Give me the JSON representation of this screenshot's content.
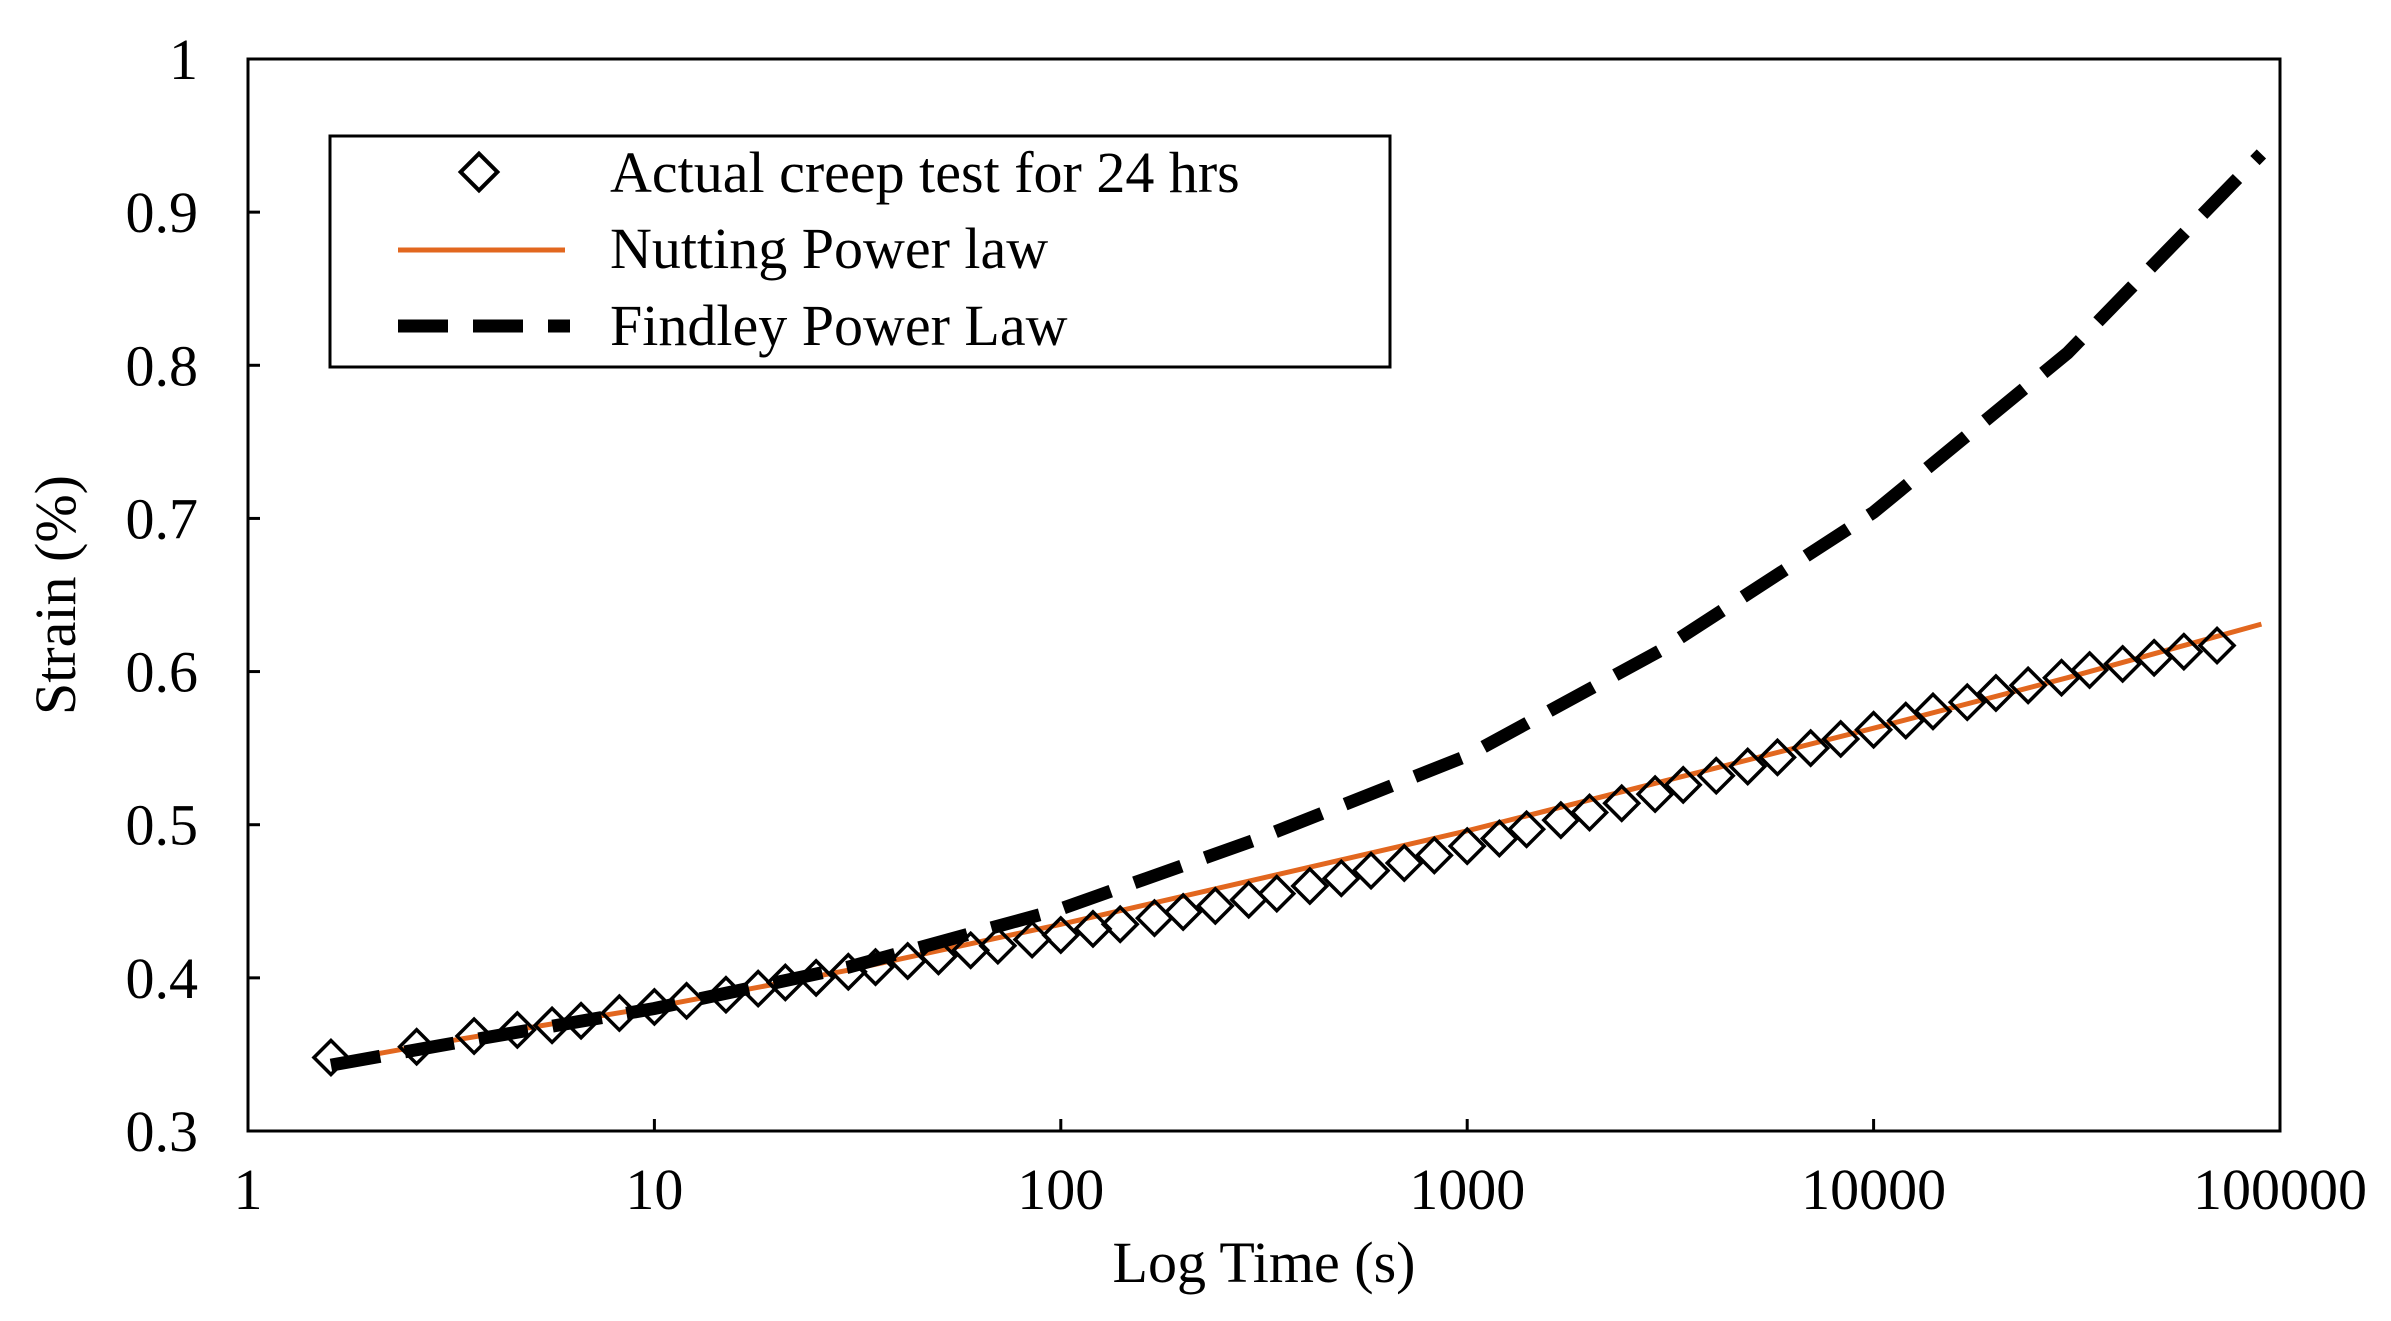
{
  "chart_data": {
    "type": "scatter",
    "title": "",
    "xlabel": "Log Time (s)",
    "ylabel": "Strain (%)",
    "xscale": "log",
    "xlim": [
      1,
      100000
    ],
    "ylim": [
      0.3,
      1.0
    ],
    "grid": false,
    "legend_position": "top-left",
    "x_ticks": [
      1,
      10,
      100,
      1000,
      10000,
      100000
    ],
    "x_tick_labels": [
      "1",
      "10",
      "100",
      "1000",
      "10000",
      "100000"
    ],
    "y_ticks": [
      0.3,
      0.4,
      0.5,
      0.6,
      0.7,
      0.8,
      0.9,
      1.0
    ],
    "y_tick_labels": [
      "0.3",
      "0.4",
      "0.5",
      "0.6",
      "0.7",
      "0.8",
      "0.9",
      "1"
    ],
    "series": [
      {
        "name": "Actual creep test for 24 hrs",
        "style": "markers",
        "marker": "diamond-open",
        "color": "#000000",
        "x": [
          1.6,
          2.6,
          3.6,
          4.6,
          5.6,
          6.6,
          8.2,
          10,
          12,
          15,
          18,
          21,
          25,
          30,
          35,
          42,
          50,
          60,
          70,
          85,
          100,
          120,
          140,
          170,
          200,
          240,
          290,
          340,
          410,
          490,
          580,
          700,
          830,
          1000,
          1200,
          1400,
          1700,
          2000,
          2400,
          2900,
          3400,
          4100,
          4900,
          5800,
          7000,
          8300,
          10000,
          12000,
          14000,
          17000,
          20000,
          24000,
          29000,
          34000,
          41000,
          49000,
          58000,
          70000
        ],
        "y": [
          0.348,
          0.355,
          0.362,
          0.366,
          0.369,
          0.372,
          0.377,
          0.381,
          0.385,
          0.389,
          0.393,
          0.397,
          0.4,
          0.404,
          0.407,
          0.411,
          0.414,
          0.418,
          0.421,
          0.425,
          0.428,
          0.432,
          0.435,
          0.439,
          0.443,
          0.447,
          0.451,
          0.455,
          0.46,
          0.465,
          0.47,
          0.475,
          0.48,
          0.486,
          0.491,
          0.497,
          0.503,
          0.508,
          0.514,
          0.52,
          0.526,
          0.532,
          0.538,
          0.544,
          0.55,
          0.556,
          0.562,
          0.568,
          0.574,
          0.58,
          0.586,
          0.591,
          0.596,
          0.601,
          0.605,
          0.609,
          0.613,
          0.617
        ]
      },
      {
        "name": "Nutting Power law",
        "style": "line",
        "color": "#E2671F",
        "x": [
          1.6,
          3,
          10,
          30,
          100,
          300,
          1000,
          3000,
          10000,
          30000,
          90000
        ],
        "y": [
          0.345,
          0.358,
          0.381,
          0.405,
          0.435,
          0.464,
          0.496,
          0.528,
          0.563,
          0.596,
          0.631
        ]
      },
      {
        "name": "Findley Power Law",
        "style": "dashed",
        "color": "#000000",
        "x": [
          1.6,
          3,
          10,
          30,
          100,
          300,
          1000,
          3000,
          10000,
          30000,
          90000
        ],
        "y": [
          0.343,
          0.356,
          0.38,
          0.407,
          0.445,
          0.49,
          0.545,
          0.614,
          0.704,
          0.808,
          0.938
        ]
      }
    ]
  }
}
